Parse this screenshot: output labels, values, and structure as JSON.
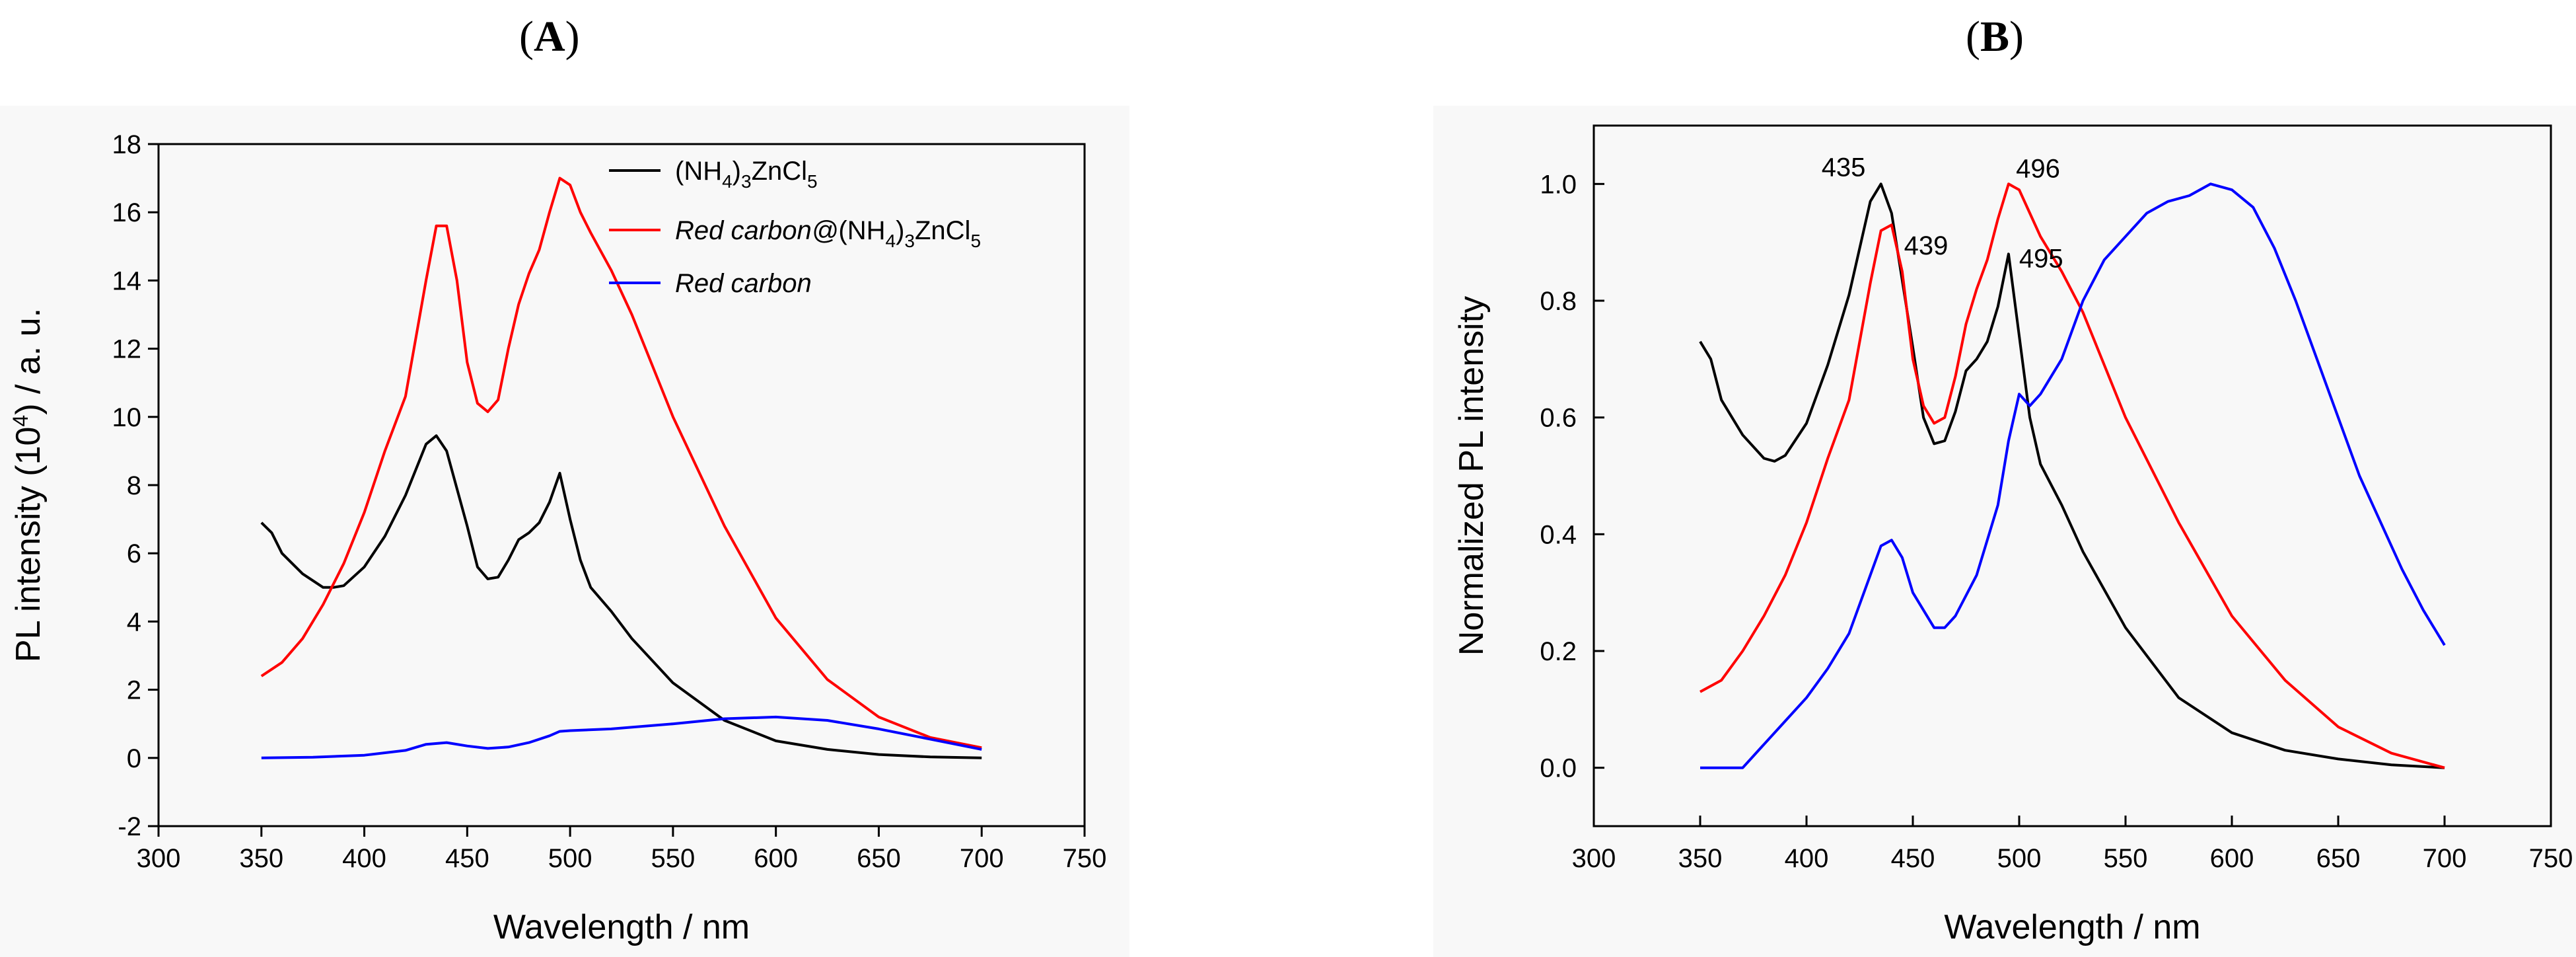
{
  "panels": [
    {
      "paren_open": "(",
      "letter": "A",
      "paren_close": ")"
    },
    {
      "paren_open": "(",
      "letter": "B",
      "paren_close": ")"
    }
  ],
  "chart_data": [
    {
      "type": "line",
      "panel": "A",
      "xlabel": "Wavelength / nm",
      "ylabel_parts": [
        "PL intensity (10",
        "4",
        ") / a. u."
      ],
      "xlim": [
        300,
        750
      ],
      "ylim": [
        -2,
        18
      ],
      "xticks": [
        300,
        350,
        400,
        450,
        500,
        550,
        600,
        650,
        700,
        750
      ],
      "yticks": [
        -2,
        0,
        2,
        4,
        6,
        8,
        10,
        12,
        14,
        16,
        18
      ],
      "legend_position": "top-right",
      "series": [
        {
          "name": "(NH4)3ZnCl5",
          "legend_parts": [
            {
              "t": "(NH",
              "s": "n"
            },
            {
              "t": "4",
              "s": "sub"
            },
            {
              "t": ")",
              "s": "n"
            },
            {
              "t": "3",
              "s": "sub"
            },
            {
              "t": "ZnCl",
              "s": "n"
            },
            {
              "t": "5",
              "s": "sub"
            }
          ],
          "color": "#000000",
          "x": [
            350,
            355,
            360,
            365,
            370,
            380,
            385,
            390,
            400,
            410,
            420,
            430,
            435,
            440,
            450,
            455,
            460,
            465,
            470,
            475,
            480,
            485,
            490,
            495,
            500,
            505,
            510,
            520,
            530,
            550,
            575,
            600,
            625,
            650,
            675,
            700
          ],
          "y": [
            6.9,
            6.6,
            6.0,
            5.7,
            5.4,
            5.0,
            5.0,
            5.05,
            5.6,
            6.5,
            7.7,
            9.2,
            9.45,
            9.0,
            6.8,
            5.6,
            5.25,
            5.3,
            5.8,
            6.4,
            6.6,
            6.9,
            7.5,
            8.35,
            7.0,
            5.8,
            5.0,
            4.3,
            3.5,
            2.2,
            1.1,
            0.5,
            0.25,
            0.1,
            0.03,
            0.0
          ]
        },
        {
          "name": "Red carbon@(NH4)3ZnCl5",
          "legend_parts": [
            {
              "t": "Red carbon@",
              "s": "i"
            },
            {
              "t": "(NH",
              "s": "n"
            },
            {
              "t": "4",
              "s": "sub"
            },
            {
              "t": ")",
              "s": "n"
            },
            {
              "t": "3",
              "s": "sub"
            },
            {
              "t": "ZnCl",
              "s": "n"
            },
            {
              "t": "5",
              "s": "sub"
            }
          ],
          "color": "#ff0000",
          "x": [
            350,
            360,
            370,
            380,
            390,
            400,
            410,
            420,
            430,
            435,
            440,
            445,
            450,
            455,
            460,
            465,
            470,
            475,
            480,
            485,
            490,
            495,
            500,
            505,
            510,
            520,
            530,
            550,
            575,
            600,
            625,
            650,
            675,
            700
          ],
          "y": [
            2.4,
            2.8,
            3.5,
            4.5,
            5.7,
            7.2,
            9.0,
            10.6,
            14.0,
            15.6,
            15.6,
            14.0,
            11.6,
            10.4,
            10.15,
            10.5,
            12.0,
            13.3,
            14.2,
            14.9,
            16.0,
            17.0,
            16.8,
            16.0,
            15.4,
            14.3,
            13.0,
            10.0,
            6.8,
            4.1,
            2.3,
            1.2,
            0.6,
            0.3
          ]
        },
        {
          "name": "Red carbon",
          "legend_parts": [
            {
              "t": "Red carbon",
              "s": "i"
            }
          ],
          "color": "#0000ff",
          "x": [
            350,
            375,
            400,
            420,
            430,
            440,
            450,
            460,
            470,
            480,
            490,
            495,
            500,
            520,
            550,
            575,
            600,
            625,
            650,
            675,
            700
          ],
          "y": [
            0.0,
            0.02,
            0.08,
            0.22,
            0.4,
            0.45,
            0.35,
            0.28,
            0.32,
            0.45,
            0.65,
            0.78,
            0.8,
            0.85,
            1.0,
            1.15,
            1.2,
            1.1,
            0.85,
            0.55,
            0.25
          ]
        }
      ]
    },
    {
      "type": "line",
      "panel": "B",
      "xlabel": "Wavelength / nm",
      "ylabel": "Normalized PL intensity",
      "xlim": [
        300,
        750
      ],
      "ylim": [
        -0.1,
        1.1
      ],
      "xticks": [
        300,
        350,
        400,
        450,
        500,
        550,
        600,
        650,
        700,
        750
      ],
      "yticks": [
        0.0,
        0.2,
        0.4,
        0.6,
        0.8,
        1.0
      ],
      "annotations": [
        {
          "text": "435",
          "x": 435,
          "y": 1.0
        },
        {
          "text": "439",
          "x": 439,
          "y": 0.93
        },
        {
          "text": "496",
          "x": 496,
          "y": 1.0
        },
        {
          "text": "495",
          "x": 495,
          "y": 0.88
        }
      ],
      "series": [
        {
          "name": "(NH4)3ZnCl5",
          "color": "#000000",
          "x": [
            350,
            355,
            360,
            365,
            370,
            380,
            385,
            390,
            400,
            410,
            420,
            430,
            435,
            440,
            450,
            455,
            460,
            465,
            470,
            475,
            480,
            485,
            490,
            495,
            500,
            505,
            510,
            520,
            530,
            550,
            575,
            600,
            625,
            650,
            675,
            700
          ],
          "y": [
            0.73,
            0.7,
            0.63,
            0.6,
            0.57,
            0.53,
            0.525,
            0.535,
            0.59,
            0.69,
            0.81,
            0.97,
            1.0,
            0.95,
            0.72,
            0.6,
            0.555,
            0.56,
            0.61,
            0.68,
            0.7,
            0.73,
            0.79,
            0.88,
            0.74,
            0.6,
            0.52,
            0.45,
            0.37,
            0.24,
            0.12,
            0.06,
            0.03,
            0.015,
            0.005,
            0.0
          ]
        },
        {
          "name": "Red carbon@(NH4)3ZnCl5",
          "color": "#ff0000",
          "x": [
            350,
            360,
            370,
            380,
            390,
            400,
            410,
            420,
            430,
            435,
            440,
            445,
            450,
            455,
            460,
            465,
            470,
            475,
            480,
            485,
            490,
            495,
            500,
            505,
            510,
            520,
            530,
            550,
            575,
            600,
            625,
            650,
            675,
            700
          ],
          "y": [
            0.13,
            0.15,
            0.2,
            0.26,
            0.33,
            0.42,
            0.53,
            0.63,
            0.83,
            0.92,
            0.93,
            0.85,
            0.7,
            0.62,
            0.59,
            0.6,
            0.67,
            0.76,
            0.82,
            0.87,
            0.94,
            1.0,
            0.99,
            0.95,
            0.91,
            0.85,
            0.78,
            0.6,
            0.42,
            0.26,
            0.15,
            0.07,
            0.025,
            0.0
          ]
        },
        {
          "name": "Red carbon",
          "color": "#0000ff",
          "x": [
            350,
            370,
            375,
            380,
            390,
            400,
            410,
            420,
            430,
            435,
            440,
            445,
            450,
            460,
            465,
            470,
            480,
            490,
            495,
            500,
            505,
            510,
            520,
            530,
            540,
            550,
            560,
            570,
            580,
            590,
            600,
            610,
            620,
            630,
            640,
            650,
            660,
            670,
            680,
            690,
            700
          ],
          "y": [
            0.0,
            0.0,
            0.02,
            0.04,
            0.08,
            0.12,
            0.17,
            0.23,
            0.33,
            0.38,
            0.39,
            0.36,
            0.3,
            0.24,
            0.24,
            0.26,
            0.33,
            0.45,
            0.56,
            0.64,
            0.62,
            0.64,
            0.7,
            0.8,
            0.87,
            0.91,
            0.95,
            0.97,
            0.98,
            1.0,
            0.99,
            0.96,
            0.89,
            0.8,
            0.7,
            0.6,
            0.5,
            0.42,
            0.34,
            0.27,
            0.21
          ]
        }
      ]
    }
  ]
}
